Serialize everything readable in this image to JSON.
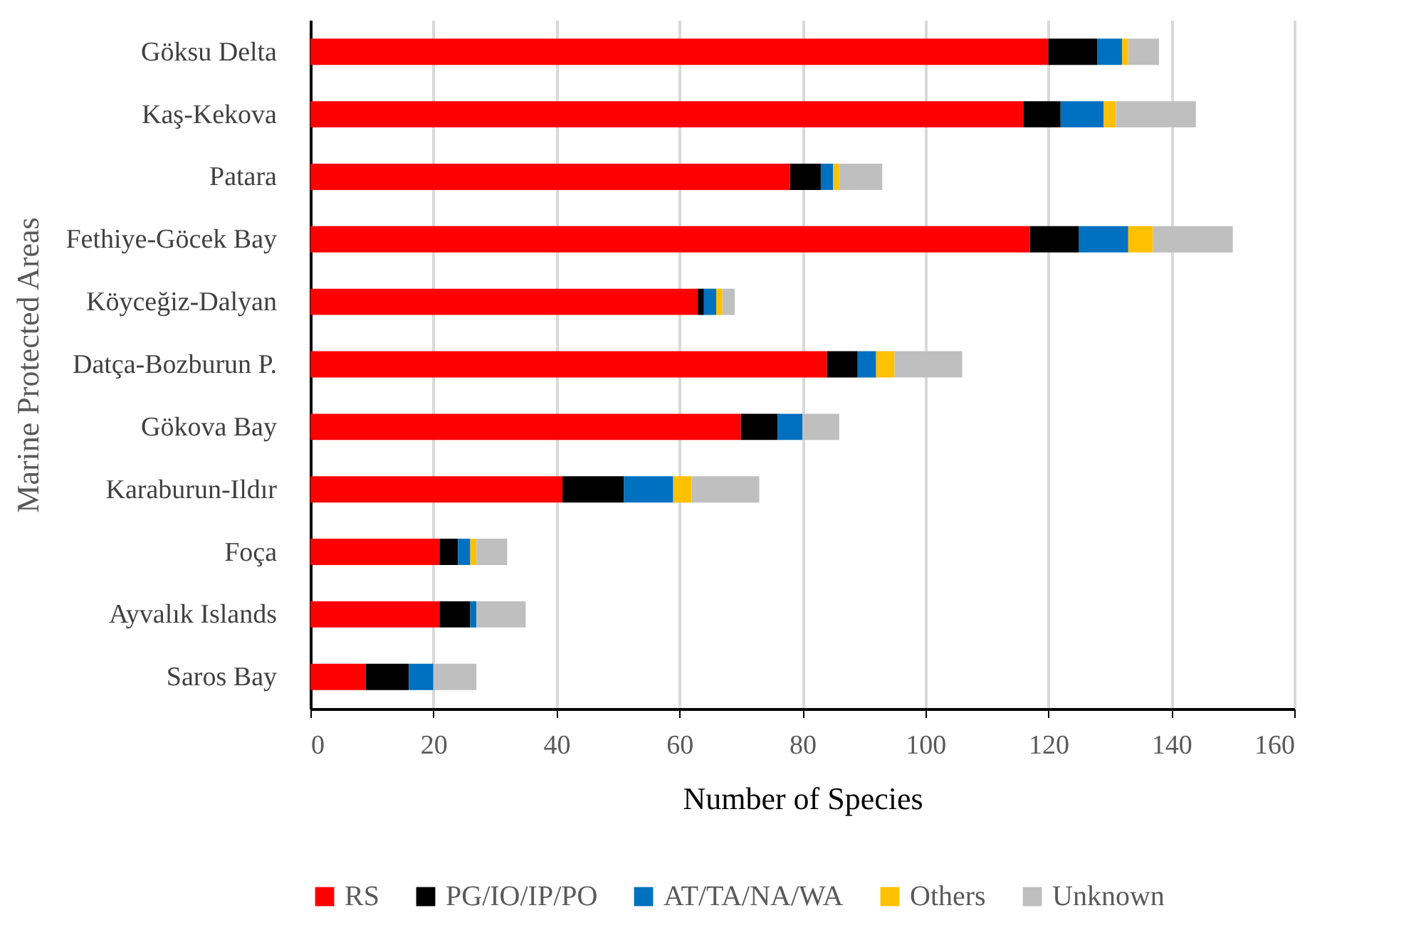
{
  "chart_data": {
    "type": "bar",
    "orientation": "horizontal",
    "stacked": true,
    "xlabel": "Number of Species",
    "ylabel": "Marine Protected Areas",
    "categories": [
      "Göksu Delta",
      "Kaş-Kekova",
      "Patara",
      "Fethiye-Göcek Bay",
      "Köyceğiz-Dalyan",
      "Datça-Bozburun P.",
      "Gökova Bay",
      "Karaburun-Ildır",
      "Foça",
      "Ayvalık Islands",
      "Saros Bay"
    ],
    "series": [
      {
        "name": "RS",
        "color": "#ff0000",
        "values": [
          120,
          116,
          78,
          117,
          63,
          84,
          70,
          41,
          21,
          21,
          9
        ]
      },
      {
        "name": "PG/IO/IP/PO",
        "color": "#000000",
        "values": [
          8,
          6,
          5,
          8,
          1,
          5,
          6,
          10,
          3,
          5,
          7
        ]
      },
      {
        "name": "AT/TA/NA/WA",
        "color": "#0070c0",
        "values": [
          4,
          7,
          2,
          8,
          2,
          3,
          4,
          8,
          2,
          1,
          4
        ]
      },
      {
        "name": "Others",
        "color": "#ffc000",
        "values": [
          1,
          2,
          1,
          4,
          1,
          3,
          0,
          3,
          1,
          0,
          0
        ]
      },
      {
        "name": "Unknown",
        "color": "#bfbfbf",
        "values": [
          5,
          13,
          7,
          13,
          2,
          11,
          6,
          11,
          5,
          8,
          7
        ]
      }
    ],
    "xlim": [
      0,
      160
    ],
    "xticks": [
      0,
      20,
      40,
      60,
      80,
      100,
      120,
      140,
      160
    ],
    "grid": "x",
    "legend": "bottom"
  }
}
